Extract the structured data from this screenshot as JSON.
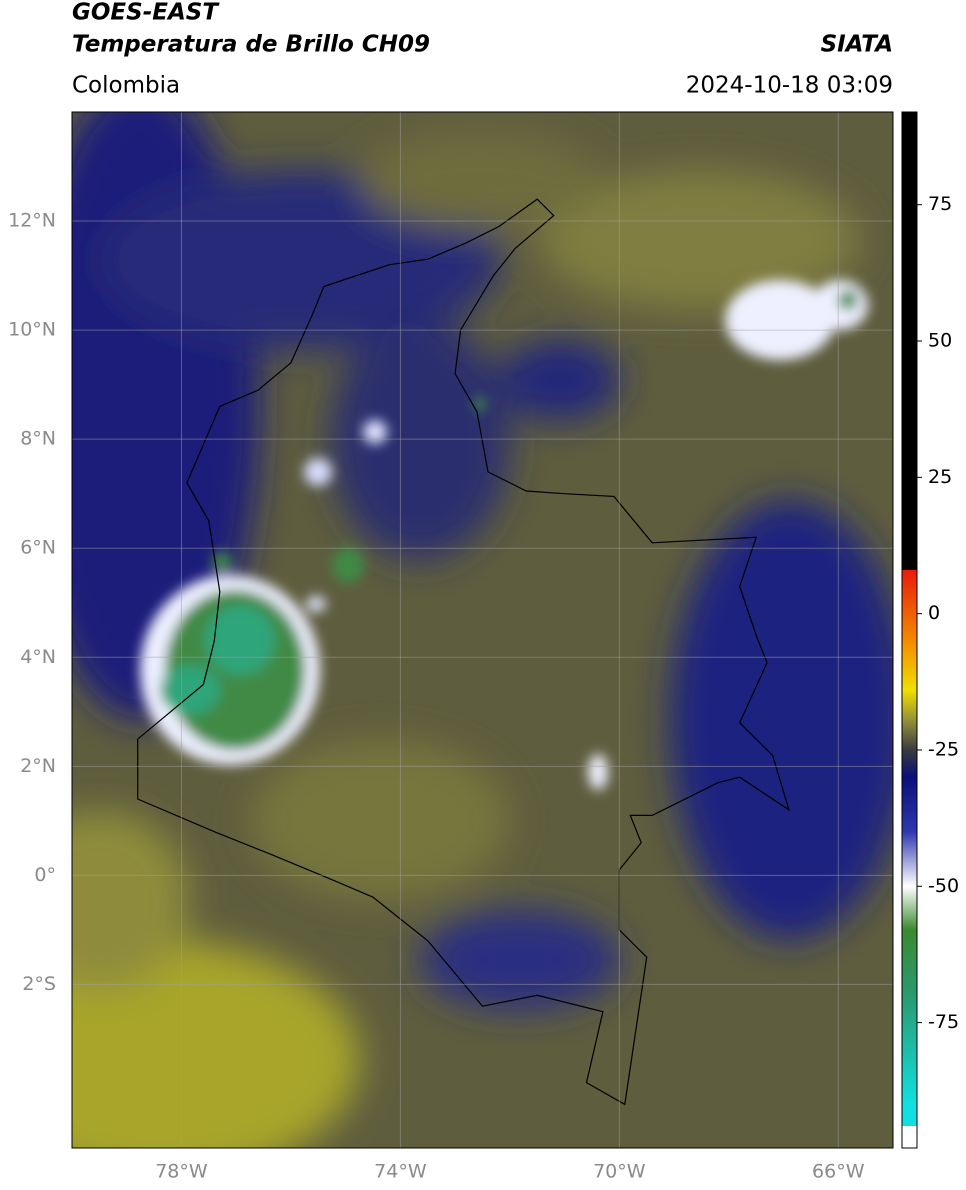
{
  "header": {
    "title_lines": [
      "GOES-EAST",
      "Temperatura de Brillo CH09"
    ],
    "source": "SIATA",
    "region": "Colombia",
    "datetime": "2024-10-18 03:09"
  },
  "chart_data": {
    "type": "map",
    "xlim": [
      -80,
      -65
    ],
    "ylim": [
      -5,
      14
    ],
    "xticks": [
      {
        "value": -78,
        "label": "78°W"
      },
      {
        "value": -74,
        "label": "74°W"
      },
      {
        "value": -70,
        "label": "70°W"
      },
      {
        "value": -66,
        "label": "66°W"
      }
    ],
    "yticks": [
      {
        "value": 12,
        "label": "12°N"
      },
      {
        "value": 10,
        "label": "10°N"
      },
      {
        "value": 8,
        "label": "8°N"
      },
      {
        "value": 6,
        "label": "6°N"
      },
      {
        "value": 4,
        "label": "4°N"
      },
      {
        "value": 2,
        "label": "2°N"
      },
      {
        "value": 0,
        "label": "0°"
      },
      {
        "value": -2,
        "label": "2°S"
      }
    ],
    "grid": true,
    "colorbar": {
      "lim": [
        -98,
        92
      ],
      "ticks": [
        75,
        50,
        25,
        0,
        -25,
        -50,
        -75
      ],
      "colormap": [
        {
          "value": 92,
          "color": "#000000"
        },
        {
          "value": 8,
          "color": "#000000"
        },
        {
          "value": 8,
          "color": "#e81c0c"
        },
        {
          "value": -5,
          "color": "#f58a00"
        },
        {
          "value": -14,
          "color": "#f0e000"
        },
        {
          "value": -20,
          "color": "#8c8a3a"
        },
        {
          "value": -25,
          "color": "#3a3a40"
        },
        {
          "value": -30,
          "color": "#0a0f7a"
        },
        {
          "value": -40,
          "color": "#3038b0"
        },
        {
          "value": -50,
          "color": "#ffffff"
        },
        {
          "value": -58,
          "color": "#3a8a30"
        },
        {
          "value": -70,
          "color": "#2a9a70"
        },
        {
          "value": -90,
          "color": "#10e0e0"
        },
        {
          "value": -94,
          "color": "#10e0e0"
        },
        {
          "value": -94,
          "color": "#ffffff"
        },
        {
          "value": -98,
          "color": "#ffffff"
        }
      ]
    }
  }
}
